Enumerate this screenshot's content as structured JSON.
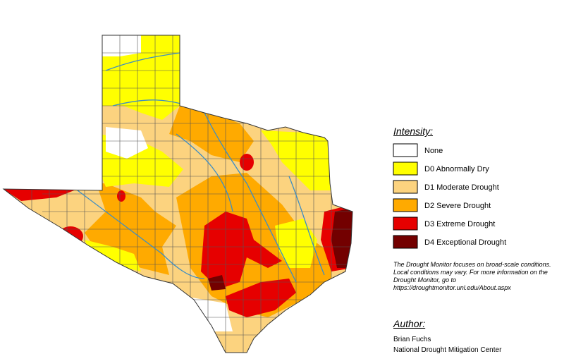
{
  "legend": {
    "title": "Intensity:",
    "items": [
      {
        "label": "None",
        "color": "#ffffff"
      },
      {
        "label": "D0 Abnormally Dry",
        "color": "#ffff00"
      },
      {
        "label": "D1 Moderate Drought",
        "color": "#fcd37f"
      },
      {
        "label": "D2 Severe Drought",
        "color": "#ffaa00"
      },
      {
        "label": "D3 Extreme Drought",
        "color": "#e60000"
      },
      {
        "label": "D4 Exceptional Drought",
        "color": "#730000"
      }
    ]
  },
  "note": "The Drought Monitor focuses on broad-scale conditions. Local conditions may vary. For more information on the Drought Monitor, go to https://droughtmonitor.unl.edu/About.aspx",
  "author": {
    "title": "Author:",
    "name": "Brian Fuchs",
    "organization": "National Drought Mitigation Center"
  }
}
